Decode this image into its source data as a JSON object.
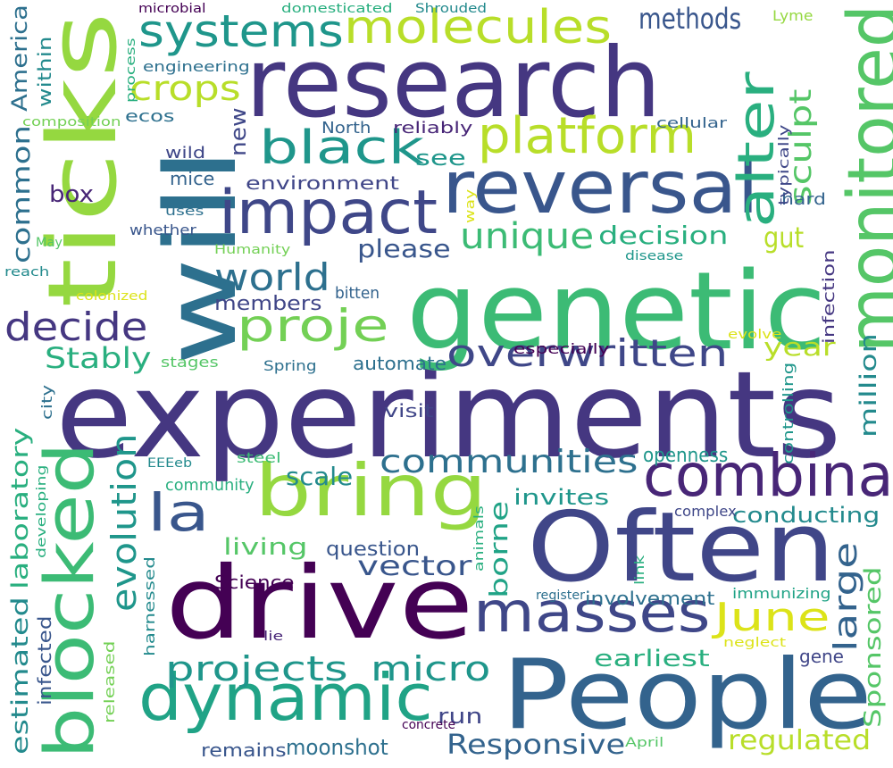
{
  "words": [
    {
      "text": "experiments",
      "color": "#453781"
    },
    {
      "text": "genetic",
      "color": "#3cbb75"
    },
    {
      "text": "research",
      "color": "#453781"
    },
    {
      "text": "will",
      "color": "#2d708e"
    },
    {
      "text": "ticks",
      "color": "#95d840"
    },
    {
      "text": "People",
      "color": "#33638d"
    },
    {
      "text": "Often",
      "color": "#404688"
    },
    {
      "text": "drive",
      "color": "#440154"
    },
    {
      "text": "reversal",
      "color": "#39568c"
    },
    {
      "text": "blocked",
      "color": "#3cbb75"
    },
    {
      "text": "monitored",
      "color": "#55c667"
    },
    {
      "text": "impact",
      "color": "#3f4788"
    },
    {
      "text": "bring",
      "color": "#95d840"
    },
    {
      "text": "dynamic",
      "color": "#20a386"
    },
    {
      "text": "combina",
      "color": "#482677"
    },
    {
      "text": "masses",
      "color": "#3f4788"
    },
    {
      "text": "platform",
      "color": "#b8de29"
    },
    {
      "text": "molecules",
      "color": "#b8de29"
    },
    {
      "text": "alter",
      "color": "#29af7f"
    },
    {
      "text": "black",
      "color": "#1f968b"
    },
    {
      "text": "systems",
      "color": "#1f968b"
    },
    {
      "text": "la",
      "color": "#39568c"
    },
    {
      "text": "proje",
      "color": "#73d055"
    },
    {
      "text": "overwritten",
      "color": "#3f4788"
    },
    {
      "text": "projects",
      "color": "#1f968b"
    },
    {
      "text": "micro",
      "color": "#1f968b"
    },
    {
      "text": "decide",
      "color": "#453781"
    },
    {
      "text": "world",
      "color": "#2d708e"
    },
    {
      "text": "unique",
      "color": "#3cbb75"
    },
    {
      "text": "June",
      "color": "#dce319"
    },
    {
      "text": "communities",
      "color": "#2d708e"
    },
    {
      "text": "evolution",
      "color": "#1f968b"
    },
    {
      "text": "crops",
      "color": "#b8de29"
    },
    {
      "text": "sculpt",
      "color": "#55c667"
    },
    {
      "text": "large",
      "color": "#33638d"
    },
    {
      "text": "methods",
      "color": "#39568c"
    },
    {
      "text": "Stably",
      "color": "#29af7f"
    },
    {
      "text": "decision",
      "color": "#29af7f"
    },
    {
      "text": "gut",
      "color": "#b8de29"
    },
    {
      "text": "Responsive",
      "color": "#33638d"
    },
    {
      "text": "regulated",
      "color": "#b8de29"
    },
    {
      "text": "estimated",
      "color": "#238a8d"
    },
    {
      "text": "laboratory",
      "color": "#29af7f"
    },
    {
      "text": "vector",
      "color": "#39568c"
    },
    {
      "text": "common",
      "color": "#2d708e"
    },
    {
      "text": "year",
      "color": "#b8de29"
    },
    {
      "text": "million",
      "color": "#238a8d"
    },
    {
      "text": "Sponsored",
      "color": "#55c667"
    },
    {
      "text": "scale",
      "color": "#238a8d"
    },
    {
      "text": "living",
      "color": "#55c667"
    },
    {
      "text": "please",
      "color": "#39568c"
    },
    {
      "text": "earliest",
      "color": "#29af7f"
    },
    {
      "text": "conducting",
      "color": "#238a8d"
    },
    {
      "text": "borne",
      "color": "#20a386"
    },
    {
      "text": "moonshot",
      "color": "#2d708e"
    },
    {
      "text": "run",
      "color": "#404688"
    },
    {
      "text": "see",
      "color": "#1f968b"
    },
    {
      "text": "America",
      "color": "#2d708e"
    },
    {
      "text": "members",
      "color": "#404688"
    },
    {
      "text": "environment",
      "color": "#404688"
    },
    {
      "text": "box",
      "color": "#482677"
    },
    {
      "text": "invites",
      "color": "#1f968b"
    },
    {
      "text": "openness",
      "color": "#1f968b"
    },
    {
      "text": "question",
      "color": "#39568c"
    },
    {
      "text": "new",
      "color": "#3f4788"
    },
    {
      "text": "infected",
      "color": "#39568c"
    },
    {
      "text": "mice",
      "color": "#33638d"
    },
    {
      "text": "involvement",
      "color": "#2d708e"
    },
    {
      "text": "gene",
      "color": "#404688"
    },
    {
      "text": "automate",
      "color": "#2d708e"
    },
    {
      "text": "bitten",
      "color": "#33638d"
    },
    {
      "text": "community",
      "color": "#29af7f"
    },
    {
      "text": "Science",
      "color": "#440154"
    },
    {
      "text": "visit",
      "color": "#404688"
    },
    {
      "text": "within",
      "color": "#238a8d"
    },
    {
      "text": "remains",
      "color": "#39568c"
    },
    {
      "text": "infection",
      "color": "#453781"
    },
    {
      "text": "hard",
      "color": "#33638d"
    },
    {
      "text": "North",
      "color": "#33638d"
    },
    {
      "text": "reliably",
      "color": "#482677"
    },
    {
      "text": "ecos",
      "color": "#2d708e"
    },
    {
      "text": "engineering",
      "color": "#2d708e"
    },
    {
      "text": "wild",
      "color": "#3f4788"
    },
    {
      "text": "whether",
      "color": "#39568c"
    },
    {
      "text": "Lyme",
      "color": "#95d840"
    },
    {
      "text": "typically",
      "color": "#3f4788"
    },
    {
      "text": "cellular",
      "color": "#33638d"
    },
    {
      "text": "especially",
      "color": "#440154"
    },
    {
      "text": "stages",
      "color": "#55c667"
    },
    {
      "text": "Spring",
      "color": "#2d708e"
    },
    {
      "text": "controlling",
      "color": "#1f968b"
    },
    {
      "text": "complex",
      "color": "#3f4788"
    },
    {
      "text": "immunizing",
      "color": "#20a386"
    },
    {
      "text": "steel",
      "color": "#3cbb75"
    },
    {
      "text": "city",
      "color": "#2d708e"
    },
    {
      "text": "EEEeb",
      "color": "#238a8d"
    },
    {
      "text": "developing",
      "color": "#29af7f"
    },
    {
      "text": "animals",
      "color": "#29af7f"
    },
    {
      "text": "link",
      "color": "#29af7f"
    },
    {
      "text": "register",
      "color": "#2d708e"
    },
    {
      "text": "harnessed",
      "color": "#238a8d"
    },
    {
      "text": "released",
      "color": "#73d055"
    },
    {
      "text": "lie",
      "color": "#482677"
    },
    {
      "text": "neglect",
      "color": "#dce319"
    },
    {
      "text": "concrete",
      "color": "#440154"
    },
    {
      "text": "April",
      "color": "#55c667"
    },
    {
      "text": "evolve",
      "color": "#dce319"
    },
    {
      "text": "disease",
      "color": "#1f968b"
    },
    {
      "text": "way",
      "color": "#dce319"
    },
    {
      "text": "Humanity",
      "color": "#73d055"
    },
    {
      "text": "colonized",
      "color": "#dce319"
    },
    {
      "text": "May",
      "color": "#55c667"
    },
    {
      "text": "reach",
      "color": "#238a8d"
    },
    {
      "text": "uses",
      "color": "#2d708e"
    },
    {
      "text": "composition",
      "color": "#73d055"
    },
    {
      "text": "process",
      "color": "#29af7f"
    },
    {
      "text": "microbial",
      "color": "#440154"
    },
    {
      "text": "domesticated",
      "color": "#29af7f"
    },
    {
      "text": "Shrouded",
      "color": "#238a8d"
    }
  ]
}
